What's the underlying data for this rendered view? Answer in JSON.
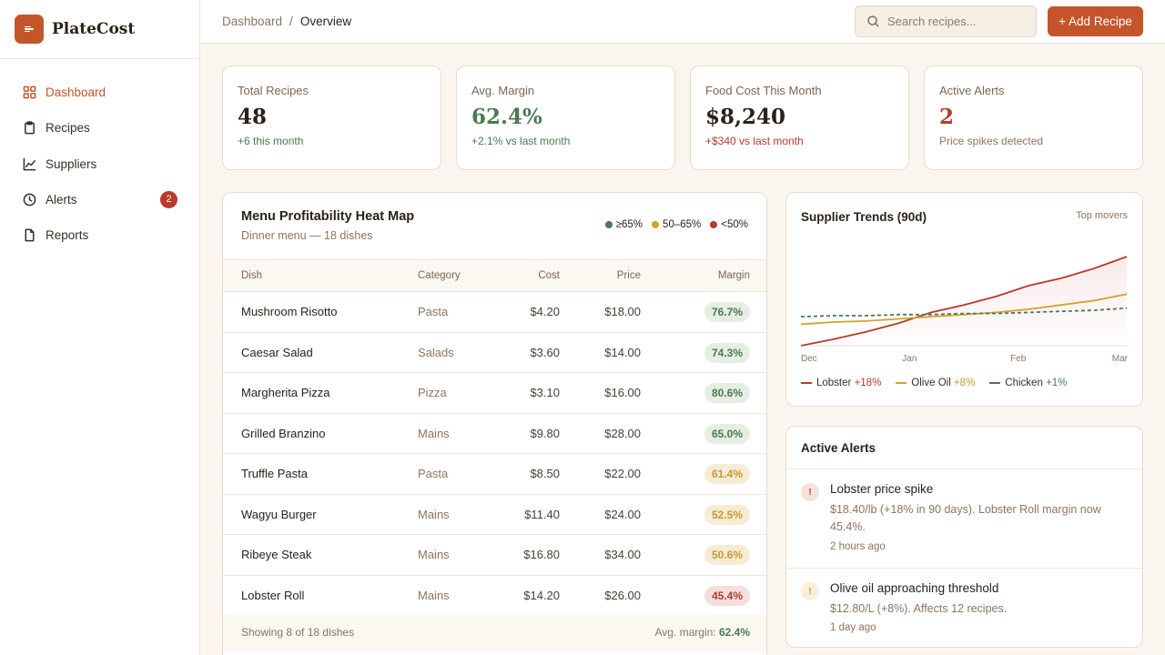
{
  "brand": {
    "name": "PlateCost"
  },
  "nav": [
    {
      "label": "Dashboard",
      "icon": "grid-icon",
      "active": true
    },
    {
      "label": "Recipes",
      "icon": "clipboard-icon"
    },
    {
      "label": "Suppliers",
      "icon": "line-chart-icon"
    },
    {
      "label": "Alerts",
      "icon": "clock-icon",
      "badge": "2"
    },
    {
      "label": "Reports",
      "icon": "document-icon"
    }
  ],
  "breadcrumb": {
    "parent": "Dashboard",
    "separator": "/",
    "current": "Overview"
  },
  "search": {
    "placeholder": "Search recipes..."
  },
  "actions": {
    "add_recipe": "+ Add Recipe"
  },
  "stats": [
    {
      "label": "Total Recipes",
      "value": "48",
      "sub": "+6 this month"
    },
    {
      "label": "Avg. Margin",
      "value": "62.4%",
      "sub": "+2.1% vs last month"
    },
    {
      "label": "Food Cost This Month",
      "value": "$8,240",
      "sub": "+$340 vs last month"
    },
    {
      "label": "Active Alerts",
      "value": "2",
      "sub": "Price spikes detected"
    }
  ],
  "heatmap": {
    "title": "Menu Profitability Heat Map",
    "subtitle": "Dinner menu — 18 dishes",
    "legend": [
      "≥65%",
      "50–65%",
      "<50%"
    ],
    "columns": [
      "Dish",
      "Category",
      "Cost",
      "Price",
      "Margin"
    ],
    "rows": [
      {
        "dish": "Mushroom Risotto",
        "category": "Pasta",
        "cost": "$4.20",
        "price": "$18.00",
        "margin": "76.7%"
      },
      {
        "dish": "Caesar Salad",
        "category": "Salads",
        "cost": "$3.60",
        "price": "$14.00",
        "margin": "74.3%"
      },
      {
        "dish": "Margherita Pizza",
        "category": "Pizza",
        "cost": "$3.10",
        "price": "$16.00",
        "margin": "80.6%"
      },
      {
        "dish": "Grilled Branzino",
        "category": "Mains",
        "cost": "$9.80",
        "price": "$28.00",
        "margin": "65.0%"
      },
      {
        "dish": "Truffle Pasta",
        "category": "Pasta",
        "cost": "$8.50",
        "price": "$22.00",
        "margin": "61.4%"
      },
      {
        "dish": "Wagyu Burger",
        "category": "Mains",
        "cost": "$11.40",
        "price": "$24.00",
        "margin": "52.5%"
      },
      {
        "dish": "Ribeye Steak",
        "category": "Mains",
        "cost": "$16.80",
        "price": "$34.00",
        "margin": "50.6%"
      },
      {
        "dish": "Lobster Roll",
        "category": "Mains",
        "cost": "$14.20",
        "price": "$26.00",
        "margin": "45.4%"
      }
    ],
    "footer_left": "Showing 8 of 18 dishes",
    "footer_right_label": "Avg. margin:",
    "footer_right_value": "62.4%"
  },
  "trends": {
    "title": "Supplier Trends (90d)",
    "link": "Top movers"
  },
  "chart_data": {
    "type": "line",
    "title": "Supplier Trends (90d)",
    "x_tick_labels": [
      "Dec",
      "Jan",
      "Feb",
      "Mar"
    ],
    "series": [
      {
        "name": "Lobster",
        "change": "+18%",
        "color": "#b93a2b",
        "style": "solid",
        "values": [
          0.0,
          0.06,
          0.13,
          0.21,
          0.31,
          0.38,
          0.46,
          0.56,
          0.63,
          0.72,
          0.83
        ]
      },
      {
        "name": "Olive Oil",
        "change": "+8%",
        "color": "#d4a12e",
        "style": "solid",
        "values": [
          0.2,
          0.22,
          0.23,
          0.25,
          0.27,
          0.29,
          0.31,
          0.34,
          0.38,
          0.42,
          0.48
        ]
      },
      {
        "name": "Chicken",
        "change": "+1%",
        "color": "#4a7a52",
        "style": "dashed",
        "values": [
          0.27,
          0.28,
          0.28,
          0.29,
          0.29,
          0.3,
          0.3,
          0.31,
          0.32,
          0.33,
          0.35
        ]
      }
    ],
    "grid": false,
    "legend_position": "bottom"
  },
  "alerts": {
    "title": "Active Alerts",
    "items": [
      {
        "name": "Lobster price spike",
        "desc": "$18.40/lb (+18% in 90 days). Lobster Roll margin now 45.4%.",
        "time": "2 hours ago",
        "severity": "high",
        "icon": "!"
      },
      {
        "name": "Olive oil approaching threshold",
        "desc": "$12.80/L (+8%). Affects 12 recipes.",
        "time": "1 day ago",
        "severity": "medium",
        "icon": "!"
      }
    ]
  },
  "colors": {
    "accent": "#c4552b",
    "green": "#4a7a52",
    "gold": "#c89a2c",
    "red": "#b93a2b"
  }
}
